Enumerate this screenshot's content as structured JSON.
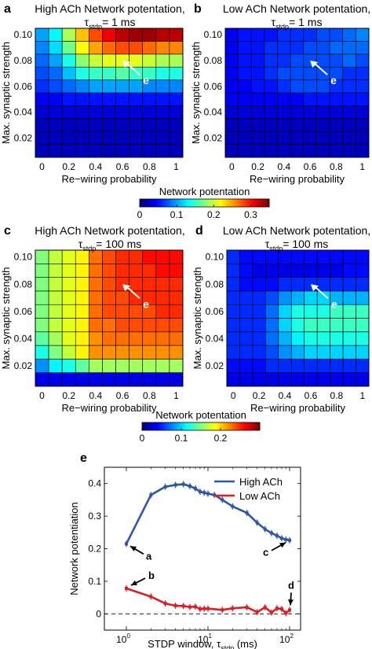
{
  "chart_data": [
    {
      "id": "a",
      "type": "heatmap",
      "panel_letter": "a",
      "title_line1": "High ACh Network potentation,",
      "title_tau": "τ",
      "title_sub": "stdp",
      "title_tail": "= 1 ms",
      "xlabel": "Re−wiring probability",
      "ylabel": "Max. synaptic strength",
      "xticks": [
        "0",
        "0.2",
        "0.4",
        "0.6",
        "0.8",
        "1"
      ],
      "yticks": [
        "0.02",
        "0.04",
        "0.06",
        "0.08",
        "0.10"
      ],
      "x": [
        0,
        0.1,
        0.2,
        0.3,
        0.4,
        0.5,
        0.6,
        0.7,
        0.8,
        0.9,
        1.0
      ],
      "y": [
        0.01,
        0.02,
        0.03,
        0.04,
        0.05,
        0.06,
        0.07,
        0.08,
        0.09,
        0.1
      ],
      "vmax": 0.35,
      "values": [
        [
          0.02,
          0.02,
          0.02,
          0.02,
          0.02,
          0.02,
          0.02,
          0.02,
          0.02,
          0.02,
          0.02
        ],
        [
          0.02,
          0.02,
          0.02,
          0.02,
          0.02,
          0.02,
          0.02,
          0.02,
          0.02,
          0.02,
          0.02
        ],
        [
          0.02,
          0.02,
          0.02,
          0.02,
          0.02,
          0.02,
          0.02,
          0.02,
          0.02,
          0.02,
          0.02
        ],
        [
          0.03,
          0.03,
          0.03,
          0.03,
          0.03,
          0.03,
          0.03,
          0.03,
          0.03,
          0.03,
          0.03
        ],
        [
          0.04,
          0.04,
          0.05,
          0.05,
          0.05,
          0.05,
          0.05,
          0.05,
          0.05,
          0.05,
          0.05
        ],
        [
          0.06,
          0.07,
          0.08,
          0.09,
          0.1,
          0.1,
          0.1,
          0.1,
          0.09,
          0.09,
          0.09
        ],
        [
          0.07,
          0.08,
          0.11,
          0.14,
          0.15,
          0.15,
          0.16,
          0.15,
          0.15,
          0.14,
          0.14
        ],
        [
          0.08,
          0.1,
          0.14,
          0.18,
          0.2,
          0.21,
          0.21,
          0.21,
          0.2,
          0.19,
          0.19
        ],
        [
          0.09,
          0.12,
          0.17,
          0.22,
          0.25,
          0.27,
          0.28,
          0.28,
          0.27,
          0.26,
          0.26
        ],
        [
          0.1,
          0.13,
          0.19,
          0.24,
          0.28,
          0.31,
          0.33,
          0.34,
          0.34,
          0.33,
          0.33
        ]
      ],
      "annotation": "e"
    },
    {
      "id": "b",
      "type": "heatmap",
      "panel_letter": "b",
      "title_line1": "Low ACh Network potentation,",
      "title_tau": "τ",
      "title_sub": "stdp",
      "title_tail": "= 1 ms",
      "xlabel": "Re−wiring probability",
      "ylabel": "Max. synaptic strength",
      "xticks": [
        "0",
        "0.2",
        "0.4",
        "0.6",
        "0.8",
        "1"
      ],
      "yticks": [
        "0.02",
        "0.04",
        "0.06",
        "0.08",
        "0.10"
      ],
      "x": [
        0,
        0.1,
        0.2,
        0.3,
        0.4,
        0.5,
        0.6,
        0.7,
        0.8,
        0.9,
        1.0
      ],
      "y": [
        0.01,
        0.02,
        0.03,
        0.04,
        0.05,
        0.06,
        0.07,
        0.08,
        0.09,
        0.1
      ],
      "vmax": 0.35,
      "values": [
        [
          0.02,
          0.02,
          0.02,
          0.02,
          0.02,
          0.02,
          0.02,
          0.02,
          0.02,
          0.02,
          0.02
        ],
        [
          0.02,
          0.02,
          0.02,
          0.02,
          0.02,
          0.02,
          0.02,
          0.02,
          0.02,
          0.02,
          0.02
        ],
        [
          0.02,
          0.02,
          0.02,
          0.02,
          0.02,
          0.02,
          0.02,
          0.02,
          0.02,
          0.02,
          0.02
        ],
        [
          0.03,
          0.03,
          0.03,
          0.03,
          0.03,
          0.03,
          0.03,
          0.03,
          0.03,
          0.03,
          0.03
        ],
        [
          0.04,
          0.04,
          0.04,
          0.04,
          0.04,
          0.04,
          0.05,
          0.05,
          0.05,
          0.05,
          0.05
        ],
        [
          0.04,
          0.04,
          0.05,
          0.05,
          0.06,
          0.07,
          0.07,
          0.07,
          0.06,
          0.06,
          0.06
        ],
        [
          0.04,
          0.05,
          0.05,
          0.06,
          0.07,
          0.07,
          0.07,
          0.07,
          0.07,
          0.06,
          0.06
        ],
        [
          0.04,
          0.05,
          0.05,
          0.06,
          0.06,
          0.07,
          0.07,
          0.07,
          0.07,
          0.08,
          0.07
        ],
        [
          0.04,
          0.05,
          0.05,
          0.06,
          0.06,
          0.06,
          0.07,
          0.07,
          0.08,
          0.08,
          0.08
        ],
        [
          0.04,
          0.05,
          0.05,
          0.05,
          0.06,
          0.06,
          0.06,
          0.07,
          0.07,
          0.08,
          0.09
        ]
      ],
      "annotation": "e"
    },
    {
      "id": "c",
      "type": "heatmap",
      "panel_letter": "c",
      "title_line1": "High ACh Network potentation,",
      "title_tau": "τ",
      "title_sub": "stdp",
      "title_tail": "= 100 ms",
      "xlabel": "Re−wiring probability",
      "ylabel": "Max. synaptic strength",
      "xticks": [
        "0",
        "0.2",
        "0.4",
        "0.6",
        "0.8",
        "1"
      ],
      "yticks": [
        "0.02",
        "0.04",
        "0.06",
        "0.08",
        "0.10"
      ],
      "x": [
        0,
        0.1,
        0.2,
        0.3,
        0.4,
        0.5,
        0.6,
        0.7,
        0.8,
        0.9,
        1.0
      ],
      "y": [
        0.01,
        0.02,
        0.03,
        0.04,
        0.05,
        0.06,
        0.07,
        0.08,
        0.09,
        0.1
      ],
      "vmax": 0.3,
      "values": [
        [
          0.03,
          0.03,
          0.03,
          0.03,
          0.03,
          0.03,
          0.03,
          0.03,
          0.03,
          0.03,
          0.03
        ],
        [
          0.08,
          0.11,
          0.12,
          0.14,
          0.16,
          0.16,
          0.16,
          0.16,
          0.16,
          0.16,
          0.16
        ],
        [
          0.12,
          0.15,
          0.17,
          0.19,
          0.22,
          0.22,
          0.22,
          0.22,
          0.22,
          0.22,
          0.22
        ],
        [
          0.14,
          0.16,
          0.18,
          0.19,
          0.22,
          0.23,
          0.23,
          0.23,
          0.23,
          0.23,
          0.23
        ],
        [
          0.15,
          0.17,
          0.18,
          0.19,
          0.23,
          0.23,
          0.24,
          0.24,
          0.24,
          0.24,
          0.24
        ],
        [
          0.15,
          0.17,
          0.18,
          0.19,
          0.23,
          0.24,
          0.24,
          0.24,
          0.24,
          0.25,
          0.25
        ],
        [
          0.15,
          0.17,
          0.18,
          0.19,
          0.23,
          0.24,
          0.24,
          0.25,
          0.25,
          0.25,
          0.25
        ],
        [
          0.15,
          0.17,
          0.18,
          0.19,
          0.23,
          0.24,
          0.25,
          0.25,
          0.25,
          0.25,
          0.25
        ],
        [
          0.15,
          0.17,
          0.18,
          0.19,
          0.23,
          0.24,
          0.25,
          0.25,
          0.25,
          0.26,
          0.26
        ],
        [
          0.15,
          0.17,
          0.18,
          0.19,
          0.23,
          0.24,
          0.25,
          0.25,
          0.26,
          0.26,
          0.26
        ]
      ],
      "annotation": "e"
    },
    {
      "id": "d",
      "type": "heatmap",
      "panel_letter": "d",
      "title_line1": "Low ACh Network potentation,",
      "title_tau": "τ",
      "title_sub": "stdp",
      "title_tail": "= 100 ms",
      "xlabel": "Re−wiring probability",
      "ylabel": "Max. synaptic strength",
      "xticks": [
        "0",
        "0.2",
        "0.4",
        "0.6",
        "0.8",
        "1"
      ],
      "yticks": [
        "0.02",
        "0.04",
        "0.06",
        "0.08",
        "0.10"
      ],
      "x": [
        0,
        0.1,
        0.2,
        0.3,
        0.4,
        0.5,
        0.6,
        0.7,
        0.8,
        0.9,
        1.0
      ],
      "y": [
        0.01,
        0.02,
        0.03,
        0.04,
        0.05,
        0.06,
        0.07,
        0.08,
        0.09,
        0.1
      ],
      "vmax": 0.3,
      "values": [
        [
          0.03,
          0.03,
          0.03,
          0.03,
          0.03,
          0.03,
          0.03,
          0.03,
          0.03,
          0.03,
          0.03
        ],
        [
          0.04,
          0.04,
          0.04,
          0.05,
          0.05,
          0.05,
          0.05,
          0.05,
          0.05,
          0.05,
          0.05
        ],
        [
          0.05,
          0.05,
          0.05,
          0.06,
          0.08,
          0.09,
          0.1,
          0.1,
          0.1,
          0.1,
          0.1
        ],
        [
          0.05,
          0.05,
          0.05,
          0.07,
          0.09,
          0.11,
          0.12,
          0.12,
          0.12,
          0.12,
          0.12
        ],
        [
          0.05,
          0.05,
          0.05,
          0.07,
          0.1,
          0.12,
          0.13,
          0.13,
          0.13,
          0.13,
          0.13
        ],
        [
          0.05,
          0.05,
          0.05,
          0.07,
          0.1,
          0.12,
          0.12,
          0.12,
          0.13,
          0.13,
          0.13
        ],
        [
          0.05,
          0.05,
          0.05,
          0.06,
          0.08,
          0.09,
          0.1,
          0.1,
          0.09,
          0.09,
          0.09
        ],
        [
          0.05,
          0.04,
          0.04,
          0.04,
          0.05,
          0.05,
          0.05,
          0.05,
          0.05,
          0.05,
          0.05
        ],
        [
          0.05,
          0.04,
          0.03,
          0.03,
          0.03,
          0.03,
          0.03,
          0.03,
          0.03,
          0.04,
          0.04
        ],
        [
          0.05,
          0.04,
          0.04,
          0.04,
          0.04,
          0.04,
          0.04,
          0.04,
          0.04,
          0.04,
          0.04
        ]
      ],
      "annotation": "e"
    },
    {
      "id": "e",
      "type": "line",
      "panel_letter": "e",
      "xscale": "log",
      "xlim": [
        1,
        100
      ],
      "ylim": [
        -0.05,
        0.45
      ],
      "xticks": [
        "10",
        "10",
        "10"
      ],
      "xtick_exps": [
        "0",
        "1",
        "2"
      ],
      "yticks": [
        "0",
        "0.1",
        "0.2",
        "0.3",
        "0.4"
      ],
      "xlabel_part1": "STDP window, τ",
      "xlabel_sub": "stdp",
      "xlabel_part2": " (ms)",
      "ylabel": "Network potentiation",
      "legend_position": "top-right",
      "series": [
        {
          "name": "High ACh",
          "color": "#2e55a6",
          "x": [
            1,
            2,
            3,
            4,
            5,
            6,
            7,
            8,
            9,
            10,
            12,
            15,
            20,
            30,
            40,
            50,
            60,
            70,
            80,
            90,
            100
          ],
          "y": [
            0.215,
            0.365,
            0.39,
            0.396,
            0.398,
            0.392,
            0.385,
            0.375,
            0.372,
            0.369,
            0.365,
            0.35,
            0.33,
            0.31,
            0.28,
            0.26,
            0.248,
            0.24,
            0.232,
            0.228,
            0.226
          ]
        },
        {
          "name": "Low ACh",
          "color": "#d81f26",
          "x": [
            1,
            2,
            3,
            4,
            5,
            6,
            7,
            8,
            9,
            10,
            15,
            20,
            30,
            40,
            50,
            60,
            70,
            80,
            90,
            100
          ],
          "y": [
            0.078,
            0.053,
            0.032,
            0.025,
            0.024,
            0.021,
            0.022,
            0.015,
            0.016,
            0.016,
            0.012,
            0.017,
            0.02,
            0.005,
            0.02,
            0.004,
            0.017,
            0.015,
            0.002,
            0.012
          ]
        }
      ],
      "dashed_reference_y": 0,
      "annotations": [
        "a",
        "b",
        "c",
        "d"
      ]
    }
  ],
  "colorbars": [
    {
      "label": "Network potentation",
      "ticks": [
        "0",
        "0.1",
        "0.2",
        "0.3"
      ],
      "vmax": 0.35
    },
    {
      "label": "Network potentation",
      "ticks": [
        "0",
        "0.1",
        "0.2"
      ],
      "vmax": 0.3
    }
  ]
}
